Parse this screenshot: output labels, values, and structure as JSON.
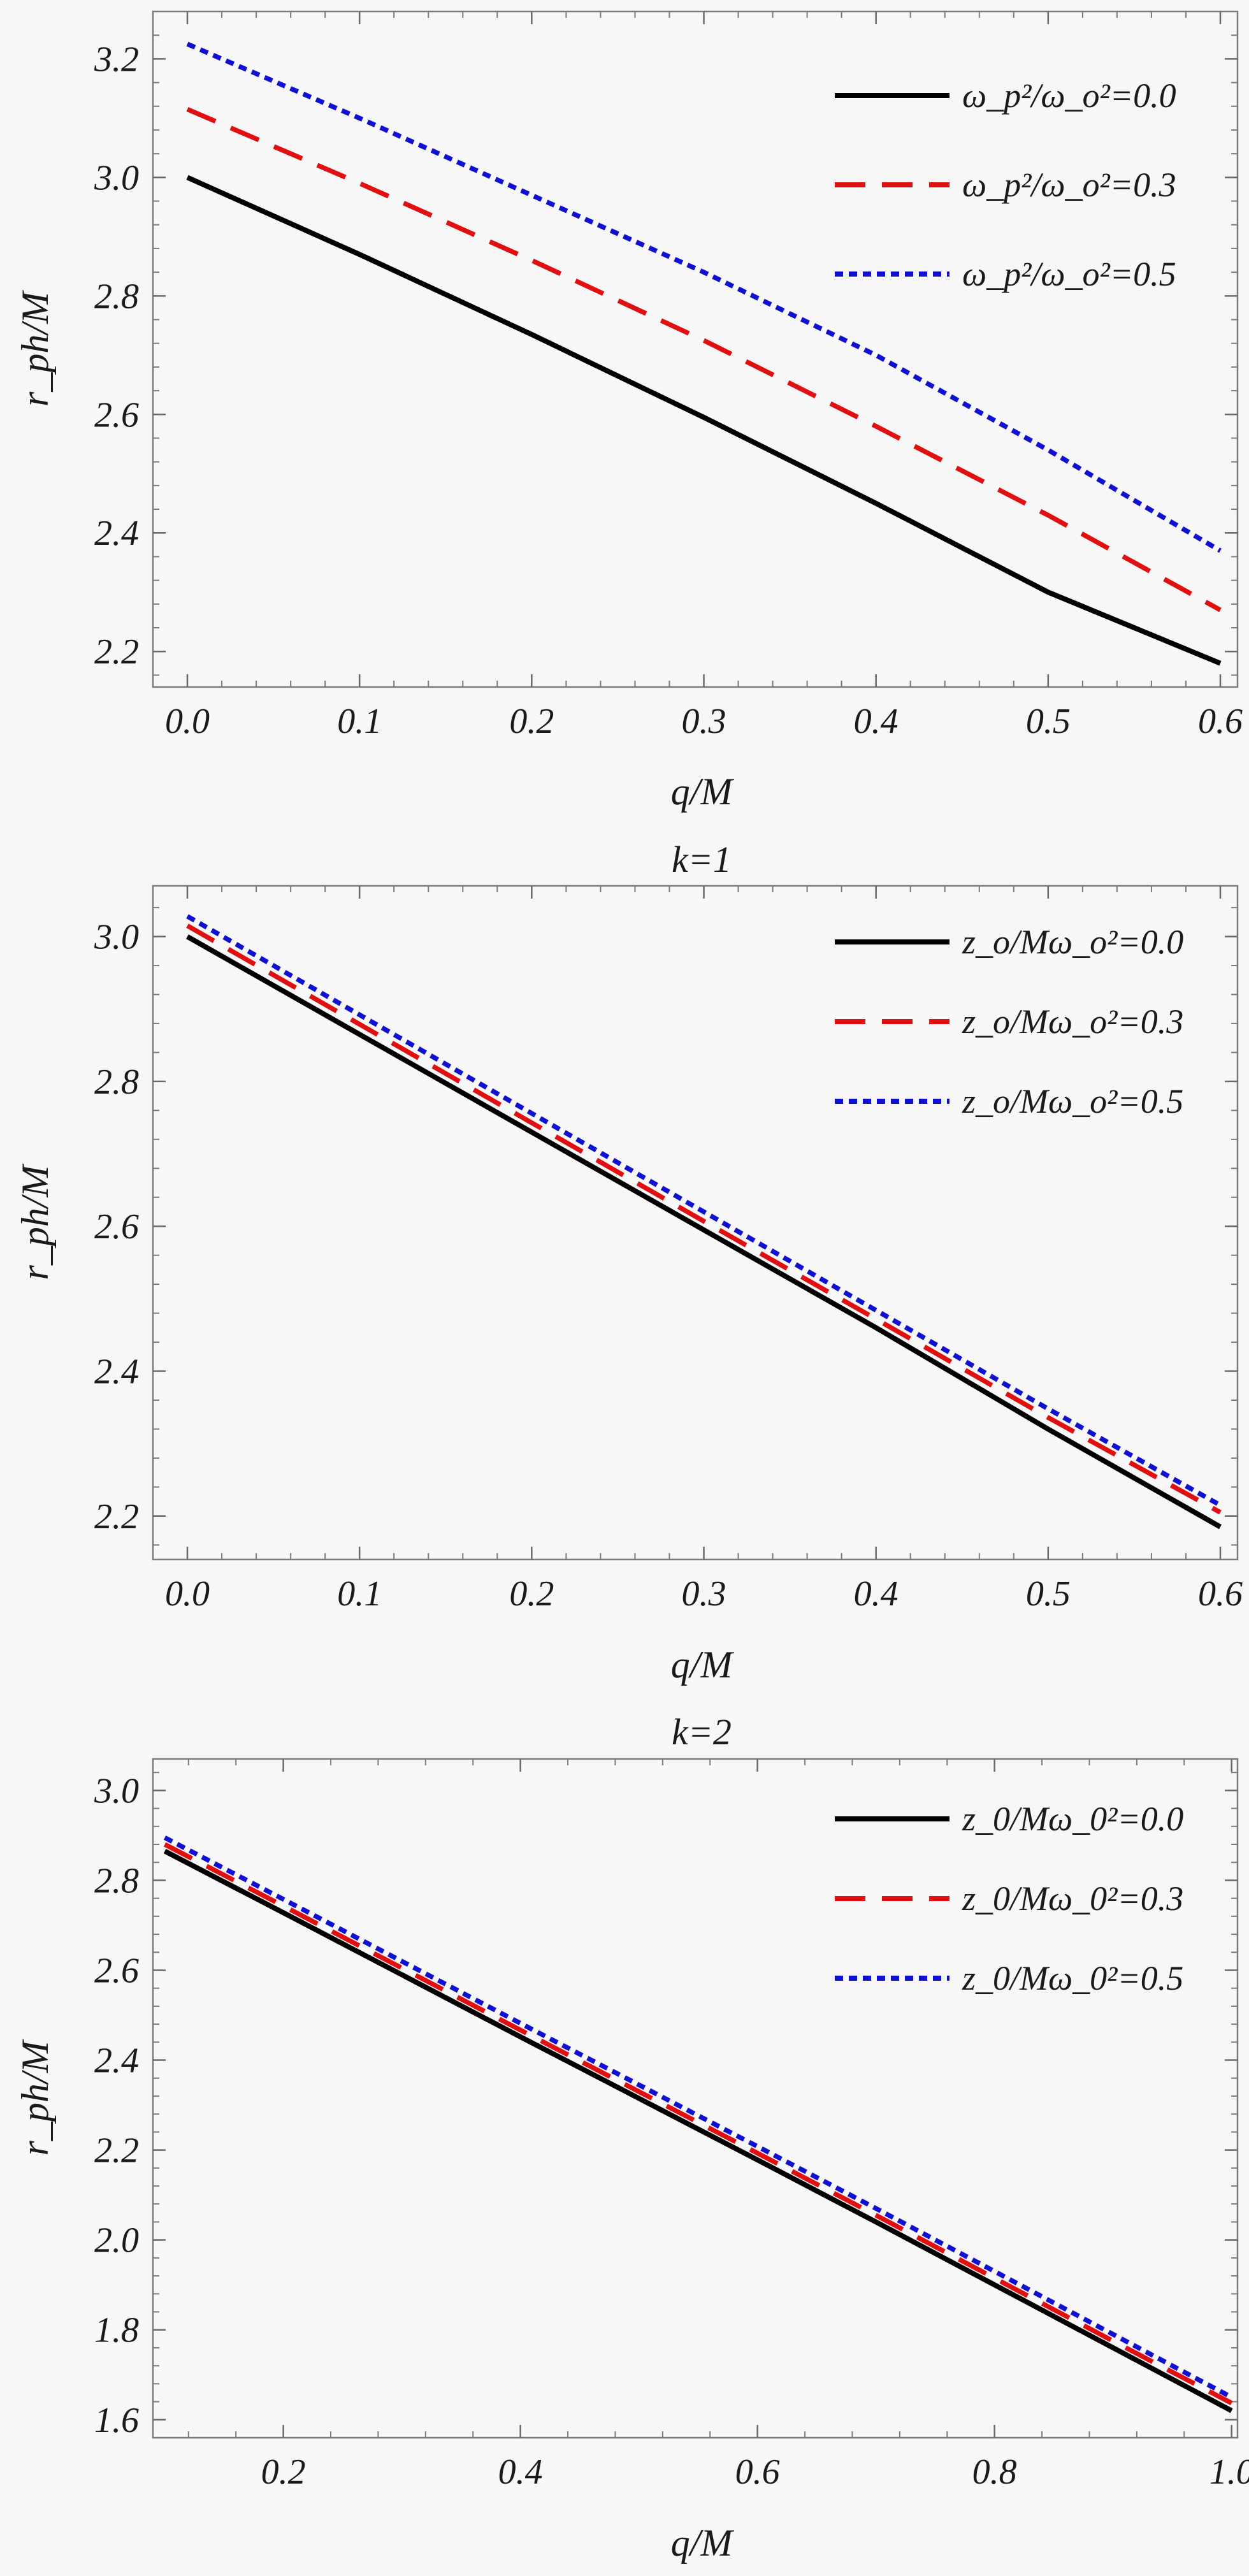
{
  "chart_data": [
    {
      "type": "line",
      "title": "",
      "xlabel": "q/M",
      "ylabel": "r_ph/M",
      "xlim": [
        -0.02,
        0.61
      ],
      "ylim": [
        2.14,
        3.28
      ],
      "xticks": [
        0.0,
        0.1,
        0.2,
        0.3,
        0.4,
        0.5,
        0.6
      ],
      "xtick_labels": [
        "0.0",
        "0.1",
        "0.2",
        "0.3",
        "0.4",
        "0.5",
        "0.6"
      ],
      "yticks": [
        2.2,
        2.4,
        2.6,
        2.8,
        3.0,
        3.2
      ],
      "ytick_labels": [
        "2.2",
        "2.4",
        "2.6",
        "2.8",
        "3.0",
        "3.2"
      ],
      "legend_position": "top-right",
      "x": [
        0.0,
        0.1,
        0.2,
        0.3,
        0.4,
        0.5,
        0.6
      ],
      "series": [
        {
          "name": "ω_p²/ω_o²=0.0",
          "color": "#000000",
          "dash": "solid",
          "values": [
            3.0,
            2.87,
            2.735,
            2.595,
            2.45,
            2.3,
            2.18
          ]
        },
        {
          "name": "ω_p²/ω_o²=0.3",
          "color": "#e01010",
          "dash": "dashed",
          "values": [
            3.115,
            2.99,
            2.86,
            2.725,
            2.58,
            2.43,
            2.27
          ]
        },
        {
          "name": "ω_p²/ω_o²=0.5",
          "color": "#1010d0",
          "dash": "dotted",
          "values": [
            3.225,
            3.1,
            2.97,
            2.84,
            2.7,
            2.54,
            2.37
          ]
        }
      ]
    },
    {
      "type": "line",
      "title": "k=1",
      "xlabel": "q/M",
      "ylabel": "r_ph/M",
      "xlim": [
        -0.02,
        0.61
      ],
      "ylim": [
        2.14,
        3.07
      ],
      "xticks": [
        0.0,
        0.1,
        0.2,
        0.3,
        0.4,
        0.5,
        0.6
      ],
      "xtick_labels": [
        "0.0",
        "0.1",
        "0.2",
        "0.3",
        "0.4",
        "0.5",
        "0.6"
      ],
      "yticks": [
        2.2,
        2.4,
        2.6,
        2.8,
        3.0
      ],
      "ytick_labels": [
        "2.2",
        "2.4",
        "2.6",
        "2.8",
        "3.0"
      ],
      "legend_position": "top-right",
      "x": [
        0.0,
        0.1,
        0.2,
        0.3,
        0.4,
        0.5,
        0.6
      ],
      "series": [
        {
          "name": "z_o/Mω_o²=0.0",
          "color": "#000000",
          "dash": "solid",
          "values": [
            3.0,
            2.865,
            2.73,
            2.595,
            2.46,
            2.32,
            2.185
          ]
        },
        {
          "name": "z_o/Mω_o²=0.3",
          "color": "#e01010",
          "dash": "dashed",
          "values": [
            3.015,
            2.879,
            2.743,
            2.607,
            2.472,
            2.336,
            2.205
          ]
        },
        {
          "name": "z_o/Mω_o²=0.5",
          "color": "#1010d0",
          "dash": "dotted",
          "values": [
            3.028,
            2.892,
            2.756,
            2.62,
            2.484,
            2.348,
            2.215
          ]
        }
      ]
    },
    {
      "type": "line",
      "title": "k=2",
      "xlabel": "q/M",
      "ylabel": "r_ph/M",
      "xlim": [
        0.09,
        1.005
      ],
      "ylim": [
        1.56,
        3.07
      ],
      "xticks": [
        0.2,
        0.4,
        0.6,
        0.8,
        1.0
      ],
      "xtick_labels": [
        "0.2",
        "0.4",
        "0.6",
        "0.8",
        "1.0"
      ],
      "yticks": [
        1.6,
        1.8,
        2.0,
        2.2,
        2.4,
        2.6,
        2.8,
        3.0
      ],
      "ytick_labels": [
        "1.6",
        "1.8",
        "2.0",
        "2.2",
        "2.4",
        "2.6",
        "2.8",
        "3.0"
      ],
      "legend_position": "top-right",
      "x": [
        0.1,
        0.2,
        0.3,
        0.4,
        0.5,
        0.6,
        0.7,
        0.8,
        0.9,
        1.0
      ],
      "series": [
        {
          "name": "z_0/Mω_0²=0.0",
          "color": "#000000",
          "dash": "solid",
          "values": [
            2.865,
            2.728,
            2.59,
            2.452,
            2.315,
            2.178,
            2.04,
            1.9,
            1.76,
            1.62
          ]
        },
        {
          "name": "z_0/Mω_0²=0.3",
          "color": "#e01010",
          "dash": "dashed",
          "values": [
            2.88,
            2.743,
            2.605,
            2.467,
            2.33,
            2.193,
            2.055,
            1.915,
            1.775,
            1.637
          ]
        },
        {
          "name": "z_0/Mω_0²=0.5",
          "color": "#1010d0",
          "dash": "dotted",
          "values": [
            2.895,
            2.758,
            2.62,
            2.482,
            2.345,
            2.208,
            2.07,
            1.93,
            1.79,
            1.65
          ]
        }
      ]
    }
  ]
}
